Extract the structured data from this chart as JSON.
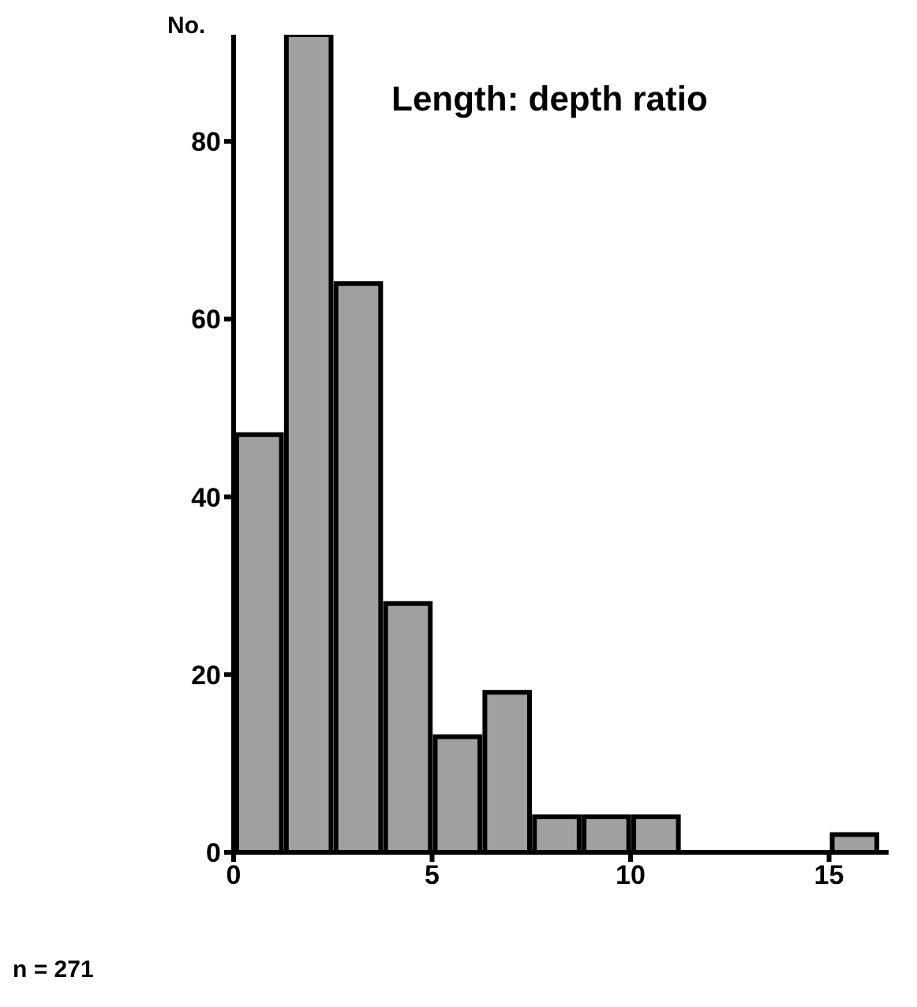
{
  "chart_data": {
    "type": "histogram",
    "title": "Length: depth ratio",
    "ylabel": "No.",
    "bins": [
      0,
      1.25,
      2.5,
      3.75,
      5,
      6.25,
      7.5,
      8.75,
      10,
      11.25,
      12.5,
      13.75,
      15,
      16.25
    ],
    "values": [
      47,
      92,
      64,
      28,
      13,
      18,
      4,
      4,
      4,
      0,
      0,
      0,
      2
    ],
    "color": "#a0a0a0",
    "xlim": [
      0,
      16.5
    ],
    "xticks": [
      0,
      5,
      10,
      15
    ],
    "ylim": [
      0,
      92
    ],
    "yticks": [
      0,
      20,
      40,
      60,
      80
    ],
    "annotations": [
      "n = 271"
    ]
  }
}
